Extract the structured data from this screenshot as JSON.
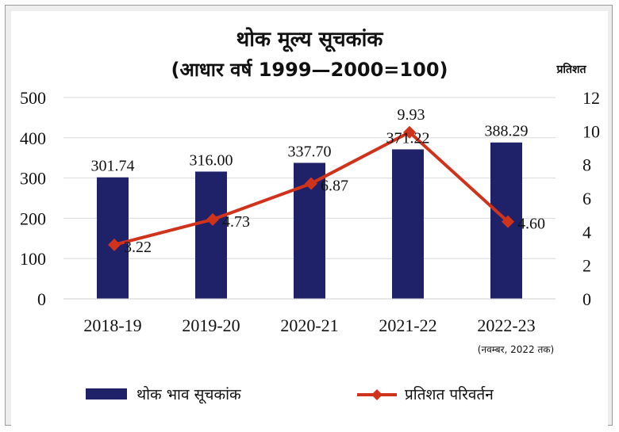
{
  "chart_data": {
    "type": "bar",
    "title": "थोक मूल्य सूचकांक",
    "subtitle": "(आधार वर्ष 1999—2000=100)",
    "y2label": "प्रतिशत",
    "categories": [
      "2018-19",
      "2019-20",
      "2020-21",
      "2021-22",
      "2022-23"
    ],
    "category_note": "(नवम्बर, 2022 तक)",
    "ylim": [
      0,
      500
    ],
    "yticks": [
      0,
      100,
      200,
      300,
      400,
      500
    ],
    "y2lim": [
      0,
      12
    ],
    "y2ticks": [
      0,
      2,
      4,
      6,
      8,
      10,
      12
    ],
    "grid": true,
    "legend_position": "bottom",
    "series": [
      {
        "name": "थोक भाव सूचकांक",
        "type": "bar",
        "axis": "left",
        "color": "#1f2268",
        "values": [
          301.74,
          316.0,
          337.7,
          371.22,
          388.29
        ],
        "labels": [
          "301.74",
          "316.00",
          "337.70",
          "371.22",
          "388.29"
        ]
      },
      {
        "name": "प्रतिशत परिवर्तन",
        "type": "line",
        "axis": "right",
        "color": "#d0331c",
        "marker": "diamond",
        "values": [
          3.22,
          4.73,
          6.87,
          9.93,
          4.6
        ],
        "labels": [
          "3.22",
          "4.73",
          "6.87",
          "9.93",
          "4.60"
        ]
      }
    ]
  }
}
